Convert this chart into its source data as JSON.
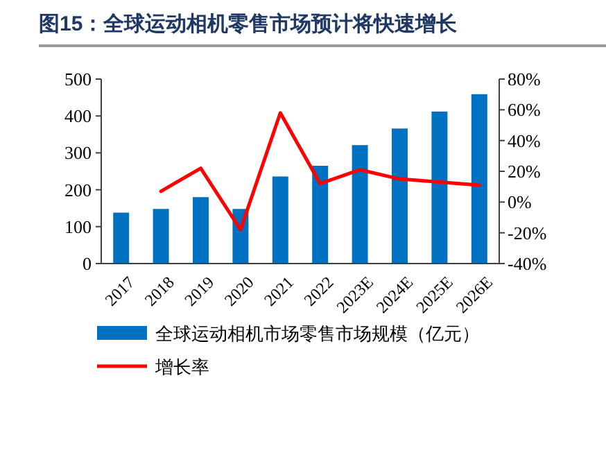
{
  "chart_data": {
    "type": "bar",
    "title": "图15：全球运动相机零售市场预计将快速增长",
    "categories": [
      "2017",
      "2018",
      "2019",
      "2020",
      "2021",
      "2022",
      "2023E",
      "2024E",
      "2025E",
      "2026E"
    ],
    "series": [
      {
        "name": "全球运动相机市场零售市场规模（亿元）",
        "color": "#0070c0",
        "values": [
          138,
          148,
          180,
          148,
          236,
          265,
          321,
          366,
          412,
          459
        ]
      },
      {
        "name": "增长率",
        "type": "line",
        "axis": "y2",
        "color": "#ff0000",
        "values": [
          null,
          7,
          22,
          -18,
          58,
          12,
          21,
          15,
          13,
          11
        ]
      }
    ],
    "ylim": [
      0,
      500
    ],
    "yticks": [
      0,
      100,
      200,
      300,
      400,
      500
    ],
    "y2lim": [
      -40,
      80
    ],
    "y2ticks": [
      {
        "value": -40,
        "label": "-40%"
      },
      {
        "value": -20,
        "label": "-20%"
      },
      {
        "value": 0,
        "label": "0%"
      },
      {
        "value": 20,
        "label": "20%"
      },
      {
        "value": 40,
        "label": "40%"
      },
      {
        "value": 60,
        "label": "60%"
      },
      {
        "value": 80,
        "label": "80%"
      }
    ],
    "legend": "bottom",
    "grid": false
  }
}
